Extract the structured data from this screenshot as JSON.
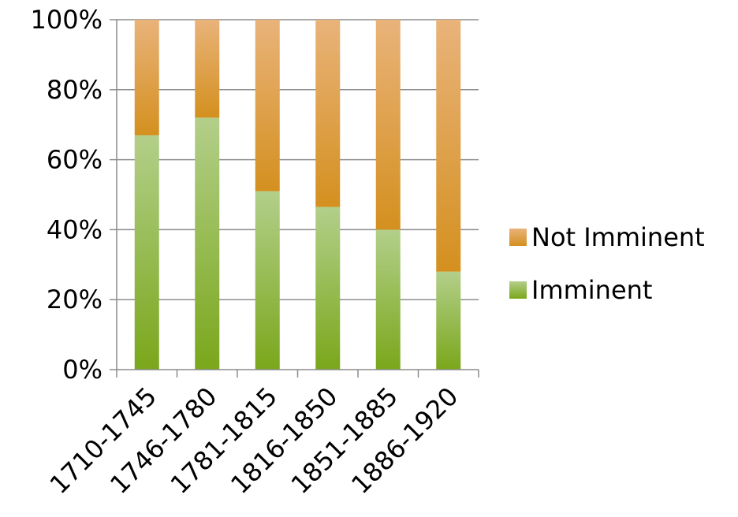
{
  "chart_data": {
    "type": "bar",
    "stacked": true,
    "stack_mode": "percent",
    "categories": [
      "1710-1745",
      "1746-1780",
      "1781-1815",
      "1816-1850",
      "1851-1885",
      "1886-1920"
    ],
    "series": [
      {
        "name": "Imminent",
        "values": [
          67,
          72,
          51,
          46.5,
          40,
          28
        ],
        "color": "#7aa71b",
        "color_light": "#b3cf8a"
      },
      {
        "name": "Not Imminent",
        "values": [
          33,
          28,
          49,
          53.5,
          60,
          72
        ],
        "color": "#d4901f",
        "color_light": "#e9b37a"
      }
    ],
    "ylim": [
      0,
      100
    ],
    "yticks": [
      "0%",
      "20%",
      "40%",
      "60%",
      "80%",
      "100%"
    ],
    "ytick_values": [
      0,
      20,
      40,
      60,
      80,
      100
    ],
    "grid": true,
    "legend_position": "right",
    "legend_order": [
      "Not Imminent",
      "Imminent"
    ],
    "title": "",
    "xlabel": "",
    "ylabel": ""
  }
}
